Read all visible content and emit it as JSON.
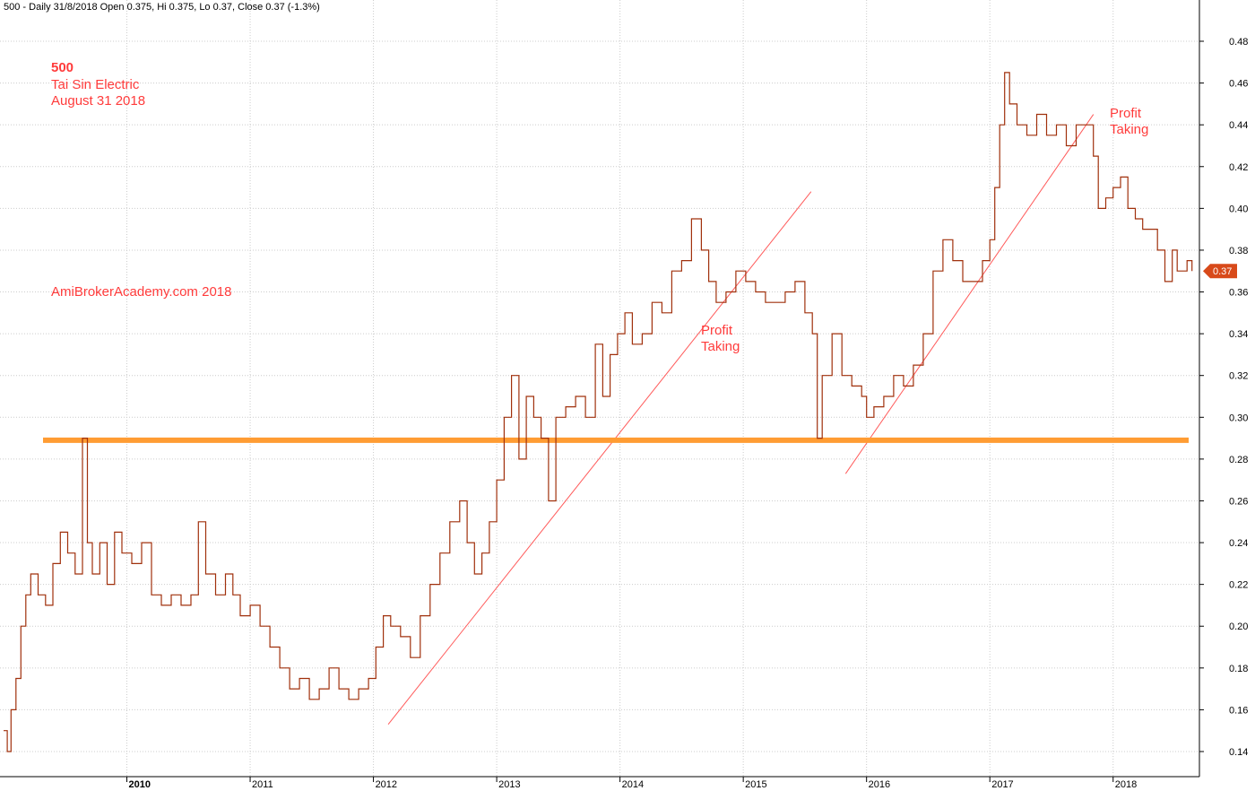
{
  "header": {
    "text": "500 - Daily 31/8/2018 Open 0.375, Hi 0.375, Lo 0.37, Close 0.37 (-1.3%)"
  },
  "annotations": {
    "stock_lines": [
      "500",
      "Tai Sin Electric",
      "August 31 2018"
    ],
    "watermark": "AmiBrokerAcademy.com  2018",
    "profit_taking_1": [
      "Profit",
      "Taking"
    ],
    "profit_taking_2": [
      "Profit",
      "Taking"
    ],
    "last_price_label": "0.37"
  },
  "colors": {
    "price_line": "#a0300c",
    "support_line": "#ff9c33",
    "trend_lines": "#ff5a5a",
    "annotation_text": "#ff3b3b",
    "grid": "#cccccc",
    "last_price_badge": "#d84a1a"
  },
  "chart_data": {
    "type": "line",
    "title": "500 - Daily 31/8/2018 Open 0.375, Hi 0.375, Lo 0.37, Close 0.37 (-1.3%)",
    "xlabel": "",
    "ylabel": "",
    "x_tick_labels": [
      "2010",
      "2011",
      "2012",
      "2013",
      "2014",
      "2015",
      "2016",
      "2017",
      "2018"
    ],
    "y_tick_labels": [
      "0.14",
      "0.16",
      "0.18",
      "0.20",
      "0.22",
      "0.24",
      "0.26",
      "0.28",
      "0.30",
      "0.32",
      "0.34",
      "0.36",
      "0.38",
      "0.40",
      "0.42",
      "0.44",
      "0.46",
      "0.48"
    ],
    "ylim": [
      0.13,
      0.49
    ],
    "xlim": [
      2009.0,
      2018.7
    ],
    "grid": true,
    "support_level": 0.289,
    "last_value": 0.37,
    "series": [
      {
        "x": [
          2009.0,
          2009.03,
          2009.06,
          2009.1,
          2009.14,
          2009.18,
          2009.22,
          2009.28,
          2009.34,
          2009.4,
          2009.46,
          2009.52,
          2009.58,
          2009.64,
          2009.68,
          2009.72,
          2009.78,
          2009.84,
          2009.9,
          2009.96,
          2010.04,
          2010.12,
          2010.2,
          2010.28,
          2010.36,
          2010.44,
          2010.52,
          2010.58,
          2010.64,
          2010.72,
          2010.8,
          2010.86,
          2010.92,
          2011.0,
          2011.08,
          2011.16,
          2011.24,
          2011.32,
          2011.4,
          2011.48,
          2011.56,
          2011.64,
          2011.72,
          2011.8,
          2011.88,
          2011.96,
          2012.02,
          2012.08,
          2012.14,
          2012.22,
          2012.3,
          2012.38,
          2012.46,
          2012.54,
          2012.62,
          2012.7,
          2012.76,
          2012.82,
          2012.88,
          2012.94,
          2013.0,
          2013.06,
          2013.12,
          2013.18,
          2013.24,
          2013.3,
          2013.36,
          2013.42,
          2013.48,
          2013.56,
          2013.64,
          2013.72,
          2013.8,
          2013.86,
          2013.92,
          2013.98,
          2014.04,
          2014.1,
          2014.18,
          2014.26,
          2014.34,
          2014.42,
          2014.5,
          2014.58,
          2014.66,
          2014.72,
          2014.78,
          2014.86,
          2014.94,
          2015.02,
          2015.1,
          2015.18,
          2015.26,
          2015.34,
          2015.42,
          2015.5,
          2015.56,
          2015.6,
          2015.64,
          2015.72,
          2015.8,
          2015.88,
          2015.96,
          2016.0,
          2016.06,
          2016.14,
          2016.22,
          2016.3,
          2016.38,
          2016.46,
          2016.54,
          2016.62,
          2016.7,
          2016.78,
          2016.86,
          2016.94,
          2017.0,
          2017.04,
          2017.08,
          2017.12,
          2017.16,
          2017.22,
          2017.3,
          2017.38,
          2017.46,
          2017.54,
          2017.62,
          2017.7,
          2017.78,
          2017.84,
          2017.88,
          2017.94,
          2018.0,
          2018.06,
          2018.12,
          2018.18,
          2018.24,
          2018.3,
          2018.36,
          2018.42,
          2018.48,
          2018.52,
          2018.56,
          2018.6,
          2018.64
        ],
        "values": [
          0.15,
          0.14,
          0.16,
          0.175,
          0.2,
          0.215,
          0.225,
          0.215,
          0.21,
          0.23,
          0.245,
          0.235,
          0.225,
          0.29,
          0.24,
          0.225,
          0.24,
          0.22,
          0.245,
          0.235,
          0.23,
          0.24,
          0.215,
          0.21,
          0.215,
          0.21,
          0.215,
          0.25,
          0.225,
          0.215,
          0.225,
          0.215,
          0.205,
          0.21,
          0.2,
          0.19,
          0.18,
          0.17,
          0.175,
          0.165,
          0.17,
          0.18,
          0.17,
          0.165,
          0.17,
          0.175,
          0.19,
          0.205,
          0.2,
          0.195,
          0.185,
          0.205,
          0.22,
          0.235,
          0.25,
          0.26,
          0.24,
          0.225,
          0.235,
          0.25,
          0.27,
          0.3,
          0.32,
          0.28,
          0.31,
          0.3,
          0.29,
          0.26,
          0.3,
          0.305,
          0.31,
          0.3,
          0.335,
          0.31,
          0.33,
          0.34,
          0.35,
          0.335,
          0.34,
          0.355,
          0.35,
          0.37,
          0.375,
          0.395,
          0.38,
          0.365,
          0.355,
          0.36,
          0.37,
          0.365,
          0.36,
          0.355,
          0.355,
          0.36,
          0.365,
          0.35,
          0.34,
          0.29,
          0.32,
          0.34,
          0.32,
          0.315,
          0.31,
          0.3,
          0.305,
          0.31,
          0.32,
          0.315,
          0.325,
          0.34,
          0.37,
          0.385,
          0.375,
          0.365,
          0.365,
          0.375,
          0.385,
          0.41,
          0.44,
          0.465,
          0.45,
          0.44,
          0.435,
          0.445,
          0.435,
          0.44,
          0.43,
          0.44,
          0.44,
          0.425,
          0.4,
          0.405,
          0.41,
          0.415,
          0.4,
          0.395,
          0.39,
          0.39,
          0.38,
          0.365,
          0.38,
          0.37,
          0.37,
          0.375,
          0.37
        ]
      }
    ],
    "trend_lines": [
      {
        "x": [
          2012.12,
          2015.55
        ],
        "y": [
          0.153,
          0.408
        ]
      },
      {
        "x": [
          2015.83,
          2017.84
        ],
        "y": [
          0.273,
          0.445
        ]
      }
    ]
  }
}
